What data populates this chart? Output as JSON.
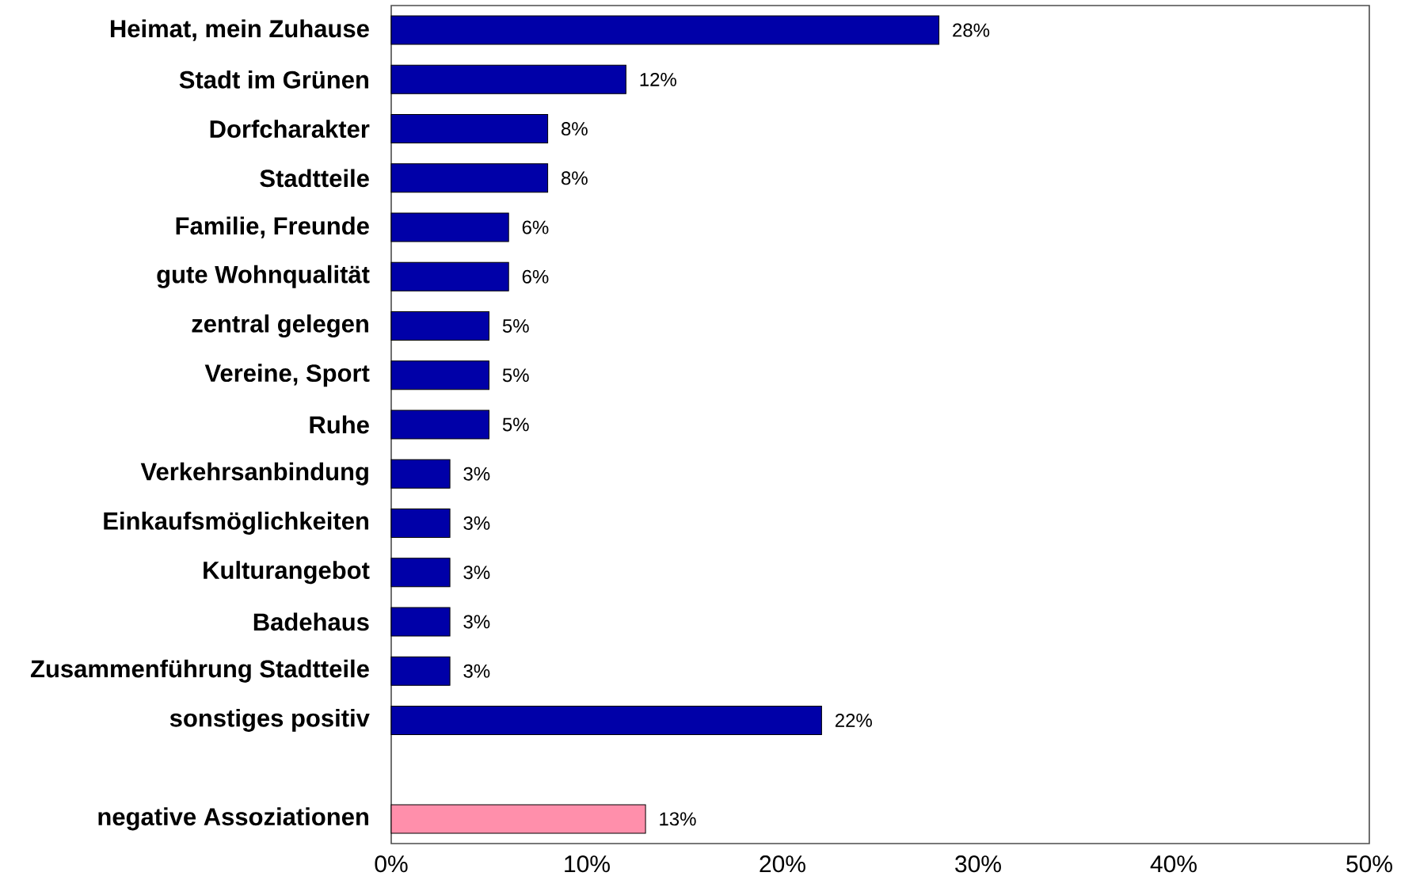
{
  "chart_data": {
    "type": "bar",
    "orientation": "horizontal",
    "categories": [
      "Heimat, mein Zuhause",
      "Stadt im Grünen",
      "Dorfcharakter",
      "Stadtteile",
      "Familie, Freunde",
      "gute Wohnqualität",
      "zentral gelegen",
      "Vereine, Sport",
      "Ruhe",
      "Verkehrsanbindung",
      "Einkaufsmöglichkeiten",
      "Kulturangebot",
      "Badehaus",
      "Zusammenführung Stadtteile",
      "sonstiges positiv",
      null,
      "negative Assoziationen"
    ],
    "values": [
      28,
      12,
      8,
      8,
      6,
      6,
      5,
      5,
      5,
      3,
      3,
      3,
      3,
      3,
      22,
      null,
      13
    ],
    "colors": [
      "#0000a8",
      "#0000a8",
      "#0000a8",
      "#0000a8",
      "#0000a8",
      "#0000a8",
      "#0000a8",
      "#0000a8",
      "#0000a8",
      "#0000a8",
      "#0000a8",
      "#0000a8",
      "#0000a8",
      "#0000a8",
      "#0000a8",
      null,
      "#ff8fab"
    ],
    "value_labels": [
      "28%",
      "12%",
      "8%",
      "8%",
      "6%",
      "6%",
      "5%",
      "5%",
      "5%",
      "3%",
      "3%",
      "3%",
      "3%",
      "3%",
      "22%",
      null,
      "13%"
    ],
    "xlim": [
      0,
      50
    ],
    "xticks": [
      {
        "value": 0,
        "label": "0%"
      },
      {
        "value": 10,
        "label": "10%"
      },
      {
        "value": 20,
        "label": "20%"
      },
      {
        "value": 30,
        "label": "30%"
      },
      {
        "value": 40,
        "label": "40%"
      },
      {
        "value": 50,
        "label": "50%"
      }
    ]
  }
}
